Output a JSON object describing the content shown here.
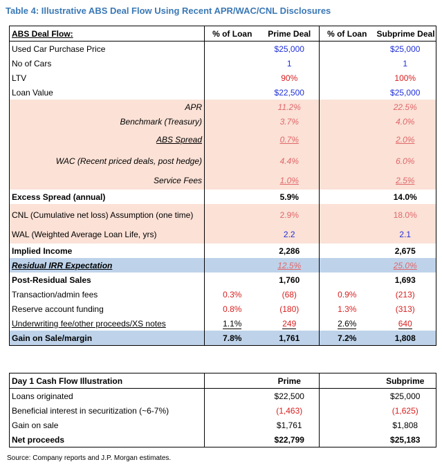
{
  "title": "Table 4: Illustrative ABS Deal Flow Using Recent APR/WAC/CNL Disclosures",
  "t1": {
    "headers": [
      "ABS Deal Flow:",
      "% of Loan",
      "Prime Deal",
      "% of Loan",
      "Subprime Deal"
    ],
    "rows": {
      "used_car": [
        "Used Car Purchase Price",
        "",
        "$25,000",
        "",
        "$25,000"
      ],
      "no_cars": [
        "No of Cars",
        "",
        "1",
        "",
        "1"
      ],
      "ltv": [
        "LTV",
        "",
        "90%",
        "",
        "100%"
      ],
      "loan_value": [
        "Loan Value",
        "",
        "$22,500",
        "",
        "$25,000"
      ],
      "apr": [
        "APR",
        "",
        "11.2%",
        "",
        "22.5%"
      ],
      "benchmark": [
        "Benchmark (Treasury)",
        "",
        "3.7%",
        "",
        "4.0%"
      ],
      "abs_spread": [
        "ABS Spread",
        "",
        "0.7%",
        "",
        "2.0%"
      ],
      "wac": [
        "WAC (Recent priced deals, post hedge)",
        "",
        "4.4%",
        "",
        "6.0%"
      ],
      "service_fees": [
        "Service Fees",
        "",
        "1.0%",
        "",
        "2.5%"
      ],
      "excess_spread": [
        "Excess Spread (annual)",
        "",
        "5.9%",
        "",
        "14.0%"
      ],
      "cnl": [
        "CNL (Cumulative net loss) Assumption (one time)",
        "",
        "2.9%",
        "",
        "18.0%"
      ],
      "wal": [
        "WAL (Weighted Average Loan Life, yrs)",
        "",
        "2.2",
        "",
        "2.1"
      ],
      "implied_income": [
        "Implied Income",
        "",
        "2,286",
        "",
        "2,675"
      ],
      "residual_irr": [
        "Residual IRR Expectation",
        "",
        "12.5%",
        "",
        "25.0%"
      ],
      "post_residual": [
        "Post-Residual Sales",
        "",
        "1,760",
        "",
        "1,693"
      ],
      "transaction": [
        "Transaction/admin fees",
        "0.3%",
        "(68)",
        "0.9%",
        "(213)"
      ],
      "reserve": [
        "Reserve account funding",
        "0.8%",
        "(180)",
        "1.3%",
        "(313)"
      ],
      "underwriting": [
        "Underwriting fee/other proceeds/XS notes",
        "1.1%",
        "249",
        "2.6%",
        "640"
      ],
      "gain_sale": [
        "Gain on Sale/margin",
        "7.8%",
        "1,761",
        "7.2%",
        "1,808"
      ]
    }
  },
  "t2": {
    "headers": [
      "Day 1 Cash Flow Illustration",
      "",
      "Prime",
      "",
      "Subprime"
    ],
    "rows": {
      "loans": [
        "Loans originated",
        "",
        "$22,500",
        "",
        "$25,000"
      ],
      "beneficial": [
        "Beneficial interest in securitization (~6-7%)",
        "",
        "(1,463)",
        "",
        "(1,625)"
      ],
      "gain": [
        "Gain on sale",
        "",
        "$1,761",
        "",
        "$1,808"
      ],
      "net": [
        "Net proceeds",
        "",
        "$22,799",
        "",
        "$25,183"
      ]
    }
  },
  "source": "Source: Company reports and J.P. Morgan estimates.",
  "colors": {
    "title": "#3a78b5",
    "input_blue": "#1f2fd8",
    "red": "#d81e1e",
    "pink": "#e0676a",
    "peach": "#fbe1d6",
    "band": "#bed3ea"
  }
}
